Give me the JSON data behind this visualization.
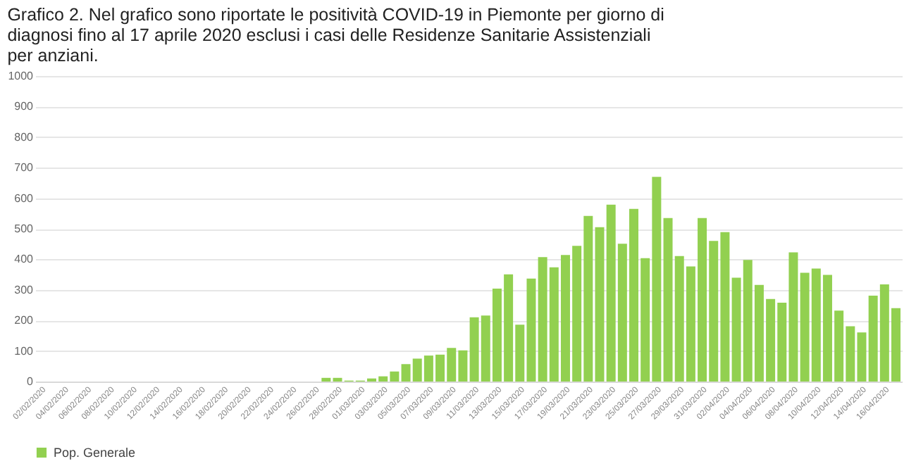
{
  "chart_data": {
    "type": "bar",
    "title": "Grafico 2. Nel grafico sono riportate le positività COVID-19 in Piemonte per giorno di diagnosi fino al 17 aprile 2020 esclusi i casi delle Residenze Sanitarie Assistenziali per anziani.",
    "categories": [
      "02/02/2020",
      null,
      "04/02/2020",
      null,
      "06/02/2020",
      null,
      "08/02/2020",
      null,
      "10/02/2020",
      null,
      "12/02/2020",
      null,
      "14/02/2020",
      null,
      "16/02/2020",
      null,
      "18/02/2020",
      null,
      "20/02/2020",
      null,
      "22/02/2020",
      null,
      "24/02/2020",
      null,
      "26/02/2020",
      null,
      "28/02/2020",
      null,
      "01/03/2020",
      null,
      "03/03/2020",
      null,
      "05/03/2020",
      null,
      "07/03/2020",
      null,
      "09/03/2020",
      null,
      "11/03/2020",
      null,
      "13/03/2020",
      null,
      "15/03/2020",
      null,
      "17/03/2020",
      null,
      "19/03/2020",
      null,
      "21/03/2020",
      null,
      "23/03/2020",
      null,
      "25/03/2020",
      null,
      "27/03/2020",
      null,
      "29/03/2020",
      null,
      "31/03/2020",
      null,
      "02/04/2020",
      null,
      "04/04/2020",
      null,
      "06/04/2020",
      null,
      "08/04/2020",
      null,
      "10/04/2020",
      null,
      "12/04/2020",
      null,
      "14/04/2020",
      null,
      "16/04/2020",
      null
    ],
    "series": [
      {
        "name": "Pop. Generale",
        "color": "#92d050",
        "values": [
          0,
          0,
          0,
          0,
          0,
          0,
          0,
          0,
          0,
          0,
          0,
          0,
          0,
          0,
          0,
          0,
          0,
          0,
          0,
          0,
          0,
          0,
          0,
          0,
          0,
          12,
          12,
          3,
          3,
          10,
          17,
          33,
          57,
          75,
          85,
          88,
          110,
          102,
          210,
          216,
          304,
          351,
          186,
          337,
          407,
          374,
          414,
          444,
          542,
          505,
          579,
          451,
          565,
          404,
          670,
          535,
          411,
          377,
          535,
          460,
          489,
          340,
          398,
          316,
          270,
          258,
          423,
          356,
          370,
          349,
          232,
          181,
          161,
          281,
          318,
          240
        ]
      }
    ],
    "ylim": [
      0,
      1000
    ],
    "yticks": [
      0,
      100,
      200,
      300,
      400,
      500,
      600,
      700,
      800,
      900,
      1000
    ],
    "grid": "y",
    "legend": "bottom"
  }
}
